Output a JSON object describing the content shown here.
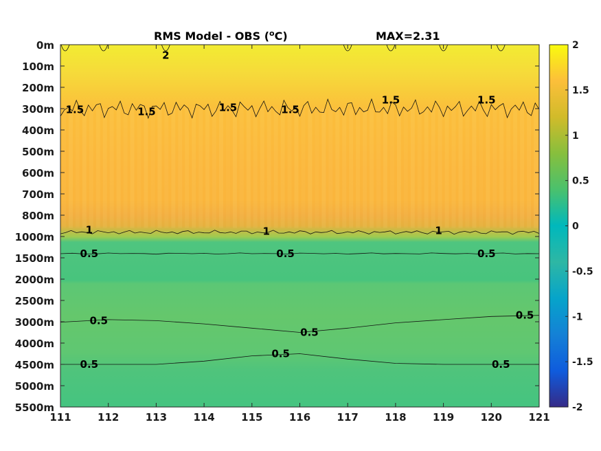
{
  "chart_data": {
    "type": "heatmap",
    "title": "RMS Model - OBS (",
    "title_unit_sup": "o",
    "title_unit_end": "C)",
    "max_label": "MAX=2.31",
    "x_ticks": [
      "111",
      "112",
      "113",
      "114",
      "115",
      "116",
      "117",
      "118",
      "119",
      "120",
      "121"
    ],
    "xlim": [
      111,
      121
    ],
    "y_ticks": [
      "0m",
      "100m",
      "200m",
      "300m",
      "400m",
      "500m",
      "600m",
      "700m",
      "800m",
      "1000m",
      "1500m",
      "2000m",
      "2500m",
      "3000m",
      "4000m",
      "4500m",
      "5000m",
      "5500m"
    ],
    "colorbar": {
      "ticks": [
        "2",
        "1.5",
        "1",
        "0.5",
        "0",
        "-0.5",
        "-1",
        "-1.5",
        "-2"
      ],
      "range": [
        -2,
        2
      ],
      "colormap": "parula"
    },
    "bands": [
      {
        "level": 0,
        "value": 1.95
      },
      {
        "level": 1,
        "value": 1.8
      },
      {
        "level": 2,
        "value": 1.55
      },
      {
        "level": 3,
        "value": 1.45
      },
      {
        "level": 4,
        "value": 1.4
      },
      {
        "level": 5,
        "value": 1.38
      },
      {
        "level": 6,
        "value": 1.36
      },
      {
        "level": 7,
        "value": 1.35
      },
      {
        "level": 8,
        "value": 1.3
      },
      {
        "level": 9,
        "value": 1.05
      },
      {
        "level": 10,
        "value": 0.45
      },
      {
        "level": 11,
        "value": 0.45
      },
      {
        "level": 12,
        "value": 0.55
      },
      {
        "level": 13,
        "value": 0.62
      },
      {
        "level": 14,
        "value": 0.6
      },
      {
        "level": 15,
        "value": 0.5
      },
      {
        "level": 16,
        "value": 0.45
      }
    ],
    "contours": [
      {
        "level": 1.5,
        "label": "1.5",
        "labels_x": [
          111.3,
          112.8,
          114.5,
          115.8,
          117.9,
          119.9
        ],
        "labels_level": [
          3.05,
          3.15,
          2.95,
          3.05,
          2.6,
          2.6
        ]
      },
      {
        "level": 1.0,
        "label": "1",
        "labels_x": [
          111.6,
          115.3,
          118.9
        ],
        "labels_level": [
          8.7,
          8.75,
          8.72
        ]
      },
      {
        "level": 0.5,
        "label": "0.5",
        "labels_x": [
          111.6,
          115.7,
          119.9
        ],
        "labels_level": [
          9.8,
          9.8,
          9.8
        ]
      },
      {
        "level": 0.5,
        "label": "0.5",
        "labels_x": [
          111.8,
          116.2,
          120.7
        ],
        "labels_level": [
          12.95,
          13.5,
          12.7
        ]
      },
      {
        "level": 0.5,
        "label": "0.5",
        "labels_x": [
          111.6,
          115.6,
          120.2
        ],
        "labels_level": [
          15.0,
          14.5,
          15.0
        ]
      },
      {
        "level": 2.0,
        "label": "2",
        "labels_x": [
          113.2
        ],
        "labels_level": [
          0.5
        ]
      }
    ]
  }
}
